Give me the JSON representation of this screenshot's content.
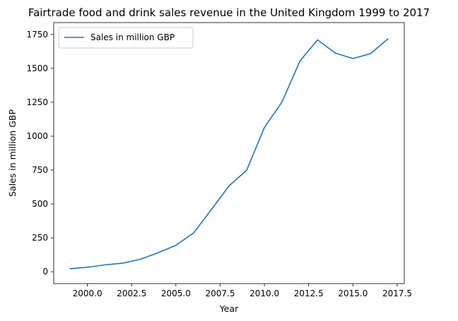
{
  "chart_data": {
    "type": "line",
    "title": "Fairtrade food and drink sales revenue in the United Kingdom 1999 to 2017",
    "xlabel": "Year",
    "ylabel": "Sales in million GBP",
    "xlim": [
      1999,
      2017
    ],
    "ylim": [
      0,
      1750
    ],
    "x_ticks": [
      2000.0,
      2002.5,
      2005.0,
      2007.5,
      2010.0,
      2012.5,
      2015.0,
      2017.5
    ],
    "x_tick_labels": [
      "2000.0",
      "2002.5",
      "2005.0",
      "2007.5",
      "2010.0",
      "2012.5",
      "2015.0",
      "2017.5"
    ],
    "y_ticks": [
      0,
      250,
      500,
      750,
      1000,
      1250,
      1500,
      1750
    ],
    "y_tick_labels": [
      "0",
      "250",
      "500",
      "750",
      "1000",
      "1250",
      "1500",
      "1750"
    ],
    "grid": false,
    "legend_position": "top-left",
    "x": [
      1999,
      2000,
      2001,
      2002,
      2003,
      2004,
      2005,
      2006,
      2007,
      2008,
      2009,
      2010,
      2011,
      2012,
      2013,
      2014,
      2015,
      2016,
      2017
    ],
    "series": [
      {
        "name": "Sales in million GBP",
        "color": "#1f77b4",
        "values": [
          22,
          33,
          51,
          63,
          92,
          141,
          195,
          286,
          458,
          633,
          749,
          1064,
          1253,
          1553,
          1710,
          1613,
          1572,
          1609,
          1720
        ]
      }
    ]
  }
}
